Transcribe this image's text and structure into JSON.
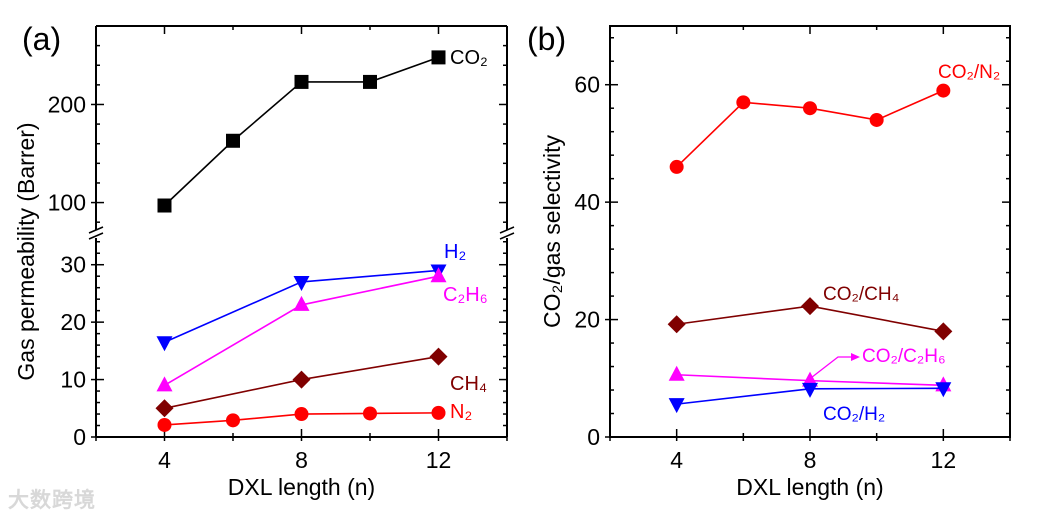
{
  "watermark": "大数跨境",
  "chart_data": [
    {
      "type": "line",
      "panel_label": "(a)",
      "xlabel": "DXL length (n)",
      "ylabel": "Gas permeability (Barrer)",
      "xlim": [
        2,
        14
      ],
      "x_ticks": [
        4,
        8,
        12
      ],
      "y_axis_break": true,
      "ylim_lower": [
        0,
        35
      ],
      "ylim_upper": [
        70,
        280
      ],
      "y_ticks_lower": [
        0,
        10,
        20,
        30
      ],
      "y_ticks_upper": [
        100,
        200
      ],
      "series": [
        {
          "name": "CO₂",
          "color": "#000000",
          "marker": "square",
          "x": [
            4,
            6,
            8,
            10,
            12
          ],
          "y": [
            97,
            163,
            223,
            223,
            248
          ]
        },
        {
          "name": "H₂",
          "color": "#0000ff",
          "marker": "triangle-down",
          "x": [
            4,
            8,
            12
          ],
          "y": [
            16.5,
            27,
            29
          ]
        },
        {
          "name": "C₂H₆",
          "color": "#ff00ff",
          "marker": "triangle-up",
          "x": [
            4,
            8,
            12
          ],
          "y": [
            9,
            23,
            28
          ]
        },
        {
          "name": "CH₄",
          "color": "#800000",
          "marker": "diamond",
          "x": [
            4,
            8,
            12
          ],
          "y": [
            5,
            10,
            14
          ]
        },
        {
          "name": "N₂",
          "color": "#ff0000",
          "marker": "circle",
          "x": [
            4,
            6,
            8,
            10,
            12
          ],
          "y": [
            2.1,
            2.9,
            4.0,
            4.1,
            4.2
          ]
        }
      ]
    },
    {
      "type": "line",
      "panel_label": "(b)",
      "xlabel": "DXL length (n)",
      "ylabel": "CO₂/gas selectivity",
      "xlim": [
        2,
        14
      ],
      "ylim": [
        0,
        70
      ],
      "x_ticks": [
        4,
        8,
        12
      ],
      "y_ticks": [
        0,
        20,
        40,
        60
      ],
      "series": [
        {
          "name": "CO₂/N₂",
          "color": "#ff0000",
          "marker": "circle",
          "x": [
            4,
            6,
            8,
            10,
            12
          ],
          "y": [
            46,
            57,
            56,
            54,
            59
          ]
        },
        {
          "name": "CO₂/CH₄",
          "color": "#800000",
          "marker": "diamond",
          "x": [
            4,
            8,
            12
          ],
          "y": [
            19.2,
            22.3,
            18
          ]
        },
        {
          "name": "CO₂/C₂H₆",
          "color": "#ff00ff",
          "marker": "triangle-up",
          "x": [
            4,
            8,
            12
          ],
          "y": [
            10.6,
            9.6,
            8.8
          ]
        },
        {
          "name": "CO₂/H₂",
          "color": "#0000ff",
          "marker": "triangle-down",
          "x": [
            4,
            8,
            12
          ],
          "y": [
            5.6,
            8.2,
            8.3
          ]
        }
      ]
    }
  ]
}
